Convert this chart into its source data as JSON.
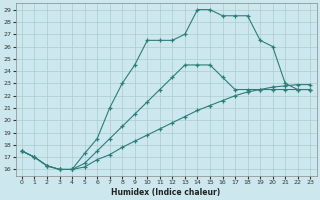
{
  "xlabel": "Humidex (Indice chaleur)",
  "bg_color": "#cce8ee",
  "grid_color": "#aacccc",
  "line_color": "#2d7d78",
  "xlim": [
    -0.5,
    23.5
  ],
  "ylim": [
    15.5,
    29.5
  ],
  "xticks": [
    0,
    1,
    2,
    3,
    4,
    5,
    6,
    7,
    8,
    9,
    10,
    11,
    12,
    13,
    14,
    15,
    16,
    17,
    18,
    19,
    20,
    21,
    22,
    23
  ],
  "yticks": [
    16,
    17,
    18,
    19,
    20,
    21,
    22,
    23,
    24,
    25,
    26,
    27,
    28,
    29
  ],
  "curve1_x": [
    0,
    1,
    2,
    3,
    4,
    5,
    6,
    7,
    8,
    9,
    10,
    11,
    12,
    13,
    14,
    15,
    16,
    17,
    18,
    19,
    20,
    21,
    22,
    23
  ],
  "curve1_y": [
    17.5,
    17.0,
    16.3,
    16.0,
    16.0,
    16.2,
    16.8,
    17.2,
    17.8,
    18.3,
    18.8,
    19.3,
    19.8,
    20.3,
    20.8,
    21.2,
    21.6,
    22.0,
    22.3,
    22.5,
    22.7,
    22.8,
    22.9,
    22.9
  ],
  "curve2_x": [
    0,
    1,
    2,
    3,
    4,
    5,
    6,
    7,
    8,
    9,
    10,
    11,
    12,
    13,
    14,
    15,
    16,
    17,
    18,
    19,
    20,
    21,
    22,
    23
  ],
  "curve2_y": [
    17.5,
    17.0,
    16.3,
    16.0,
    16.0,
    16.5,
    17.5,
    18.5,
    19.5,
    20.5,
    21.5,
    22.5,
    23.5,
    24.5,
    24.5,
    24.5,
    23.5,
    22.5,
    22.5,
    22.5,
    22.5,
    22.5,
    22.5,
    22.5
  ],
  "curve3_x": [
    0,
    1,
    2,
    3,
    4,
    5,
    6,
    7,
    8,
    9,
    10,
    11,
    12,
    13,
    14,
    15,
    16,
    17,
    18,
    19,
    20,
    21,
    22,
    23
  ],
  "curve3_y": [
    17.5,
    17.0,
    16.3,
    16.0,
    16.0,
    17.3,
    18.5,
    21.0,
    23.0,
    24.5,
    26.5,
    26.5,
    26.5,
    27.0,
    29.0,
    29.0,
    28.5,
    28.5,
    28.5,
    26.5,
    26.0,
    23.0,
    22.5,
    22.5
  ]
}
